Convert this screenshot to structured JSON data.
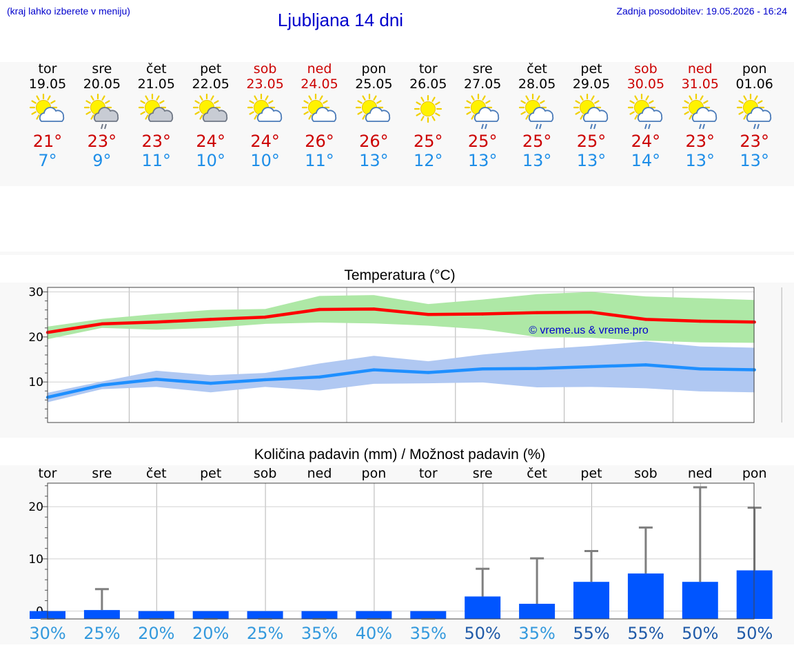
{
  "header": {
    "left_note": "(kraj lahko izberete v meniju)",
    "title": "Ljubljana 14 dni",
    "updated": "Zadnja posodobitev: 19.05.2026 - 16:24"
  },
  "colors": {
    "max_line": "#ff0000",
    "max_band": "#aee8a6",
    "min_line": "#1e8fff",
    "min_band": "#b0c8f2",
    "precip_bar": "#0055ff",
    "error_bar": "#7f7f7f",
    "weekend": "#cc0000",
    "min_temp_text": "#1e8ee8"
  },
  "days": [
    {
      "name": "tor",
      "date": "19.05",
      "weekend": false,
      "icon": "sun-cloud-icon",
      "tmax": "21°",
      "tmin": "7°",
      "pct": "30%"
    },
    {
      "name": "sre",
      "date": "20.05",
      "weekend": false,
      "icon": "sun-gray-cloud-rain-icon",
      "tmax": "23°",
      "tmin": "9°",
      "pct": "25%"
    },
    {
      "name": "čet",
      "date": "21.05",
      "weekend": false,
      "icon": "sun-gray-cloud-icon",
      "tmax": "23°",
      "tmin": "11°",
      "pct": "20%"
    },
    {
      "name": "pet",
      "date": "22.05",
      "weekend": false,
      "icon": "sun-gray-cloud-icon",
      "tmax": "24°",
      "tmin": "10°",
      "pct": "20%"
    },
    {
      "name": "sob",
      "date": "23.05",
      "weekend": true,
      "icon": "sun-cloud-icon",
      "tmax": "24°",
      "tmin": "10°",
      "pct": "25%"
    },
    {
      "name": "ned",
      "date": "24.05",
      "weekend": true,
      "icon": "sun-cloud-icon",
      "tmax": "26°",
      "tmin": "11°",
      "pct": "35%"
    },
    {
      "name": "pon",
      "date": "25.05",
      "weekend": false,
      "icon": "sun-cloud-icon",
      "tmax": "26°",
      "tmin": "13°",
      "pct": "40%"
    },
    {
      "name": "tor",
      "date": "26.05",
      "weekend": false,
      "icon": "sun-icon",
      "tmax": "25°",
      "tmin": "12°",
      "pct": "35%"
    },
    {
      "name": "sre",
      "date": "27.05",
      "weekend": false,
      "icon": "sun-cloud-rain-icon",
      "tmax": "25°",
      "tmin": "13°",
      "pct": "50%"
    },
    {
      "name": "čet",
      "date": "28.05",
      "weekend": false,
      "icon": "sun-cloud-rain-icon",
      "tmax": "25°",
      "tmin": "13°",
      "pct": "35%"
    },
    {
      "name": "pet",
      "date": "29.05",
      "weekend": false,
      "icon": "sun-cloud-rain-icon",
      "tmax": "25°",
      "tmin": "13°",
      "pct": "55%"
    },
    {
      "name": "sob",
      "date": "30.05",
      "weekend": true,
      "icon": "sun-cloud-rain-icon",
      "tmax": "24°",
      "tmin": "14°",
      "pct": "55%"
    },
    {
      "name": "ned",
      "date": "31.05",
      "weekend": true,
      "icon": "sun-cloud-rain-icon",
      "tmax": "23°",
      "tmin": "13°",
      "pct": "50%"
    },
    {
      "name": "pon",
      "date": "01.06",
      "weekend": false,
      "icon": "sun-cloud-rain-icon",
      "tmax": "23°",
      "tmin": "13°",
      "pct": "50%"
    }
  ],
  "chart_data": [
    {
      "type": "line",
      "title": "Temperatura (°C)",
      "watermark": "© vreme.us & vreme.pro",
      "ylim": [
        1,
        31
      ],
      "yticks": [
        10,
        20,
        30
      ],
      "grid": true,
      "series": [
        {
          "values": [
            21,
            22.9,
            23.3,
            23.9,
            24.4,
            26.1,
            26.2,
            25.0,
            25.1,
            25.4,
            25.5,
            23.9,
            23.5,
            23.3
          ],
          "band_low": [
            19.5,
            22.0,
            21.6,
            22.0,
            22.9,
            23.2,
            23.0,
            22.5,
            21.7,
            20.0,
            19.8,
            19.2,
            18.8,
            18.7
          ],
          "band_high": [
            22.3,
            24.0,
            25.1,
            26.0,
            26.2,
            29.1,
            29.3,
            27.3,
            28.3,
            29.5,
            30.0,
            29.0,
            28.6,
            28.2
          ]
        },
        {
          "values": [
            6.6,
            9.3,
            10.6,
            9.7,
            10.5,
            11.1,
            12.7,
            12.1,
            12.9,
            13.0,
            13.4,
            13.8,
            12.9,
            12.7
          ],
          "band_low": [
            5.5,
            8.4,
            8.9,
            7.7,
            8.9,
            8.1,
            9.6,
            9.7,
            9.9,
            8.8,
            8.9,
            8.6,
            7.9,
            7.7
          ],
          "band_high": [
            7.6,
            10.1,
            12.5,
            11.5,
            12.0,
            14.1,
            15.8,
            14.6,
            16.1,
            17.2,
            18.0,
            19.0,
            17.9,
            17.6
          ]
        }
      ]
    },
    {
      "type": "bar",
      "title": "Količina padavin (mm) / Možnost padavin (%)",
      "ylim": [
        -1.5,
        24.5
      ],
      "yticks": [
        0,
        10,
        20
      ],
      "grid": true,
      "values": [
        0,
        0.2,
        0,
        0,
        0,
        0,
        0,
        0,
        2.8,
        1.4,
        5.6,
        7.2,
        5.6,
        7.8
      ],
      "error_high": [
        0,
        4.2,
        0,
        0,
        0,
        0,
        0,
        0,
        8.1,
        10.1,
        11.5,
        16.0,
        23.7,
        19.8
      ],
      "chance": [
        "30%",
        "25%",
        "20%",
        "20%",
        "25%",
        "35%",
        "40%",
        "35%",
        "50%",
        "35%",
        "55%",
        "55%",
        "50%",
        "50%"
      ]
    }
  ]
}
